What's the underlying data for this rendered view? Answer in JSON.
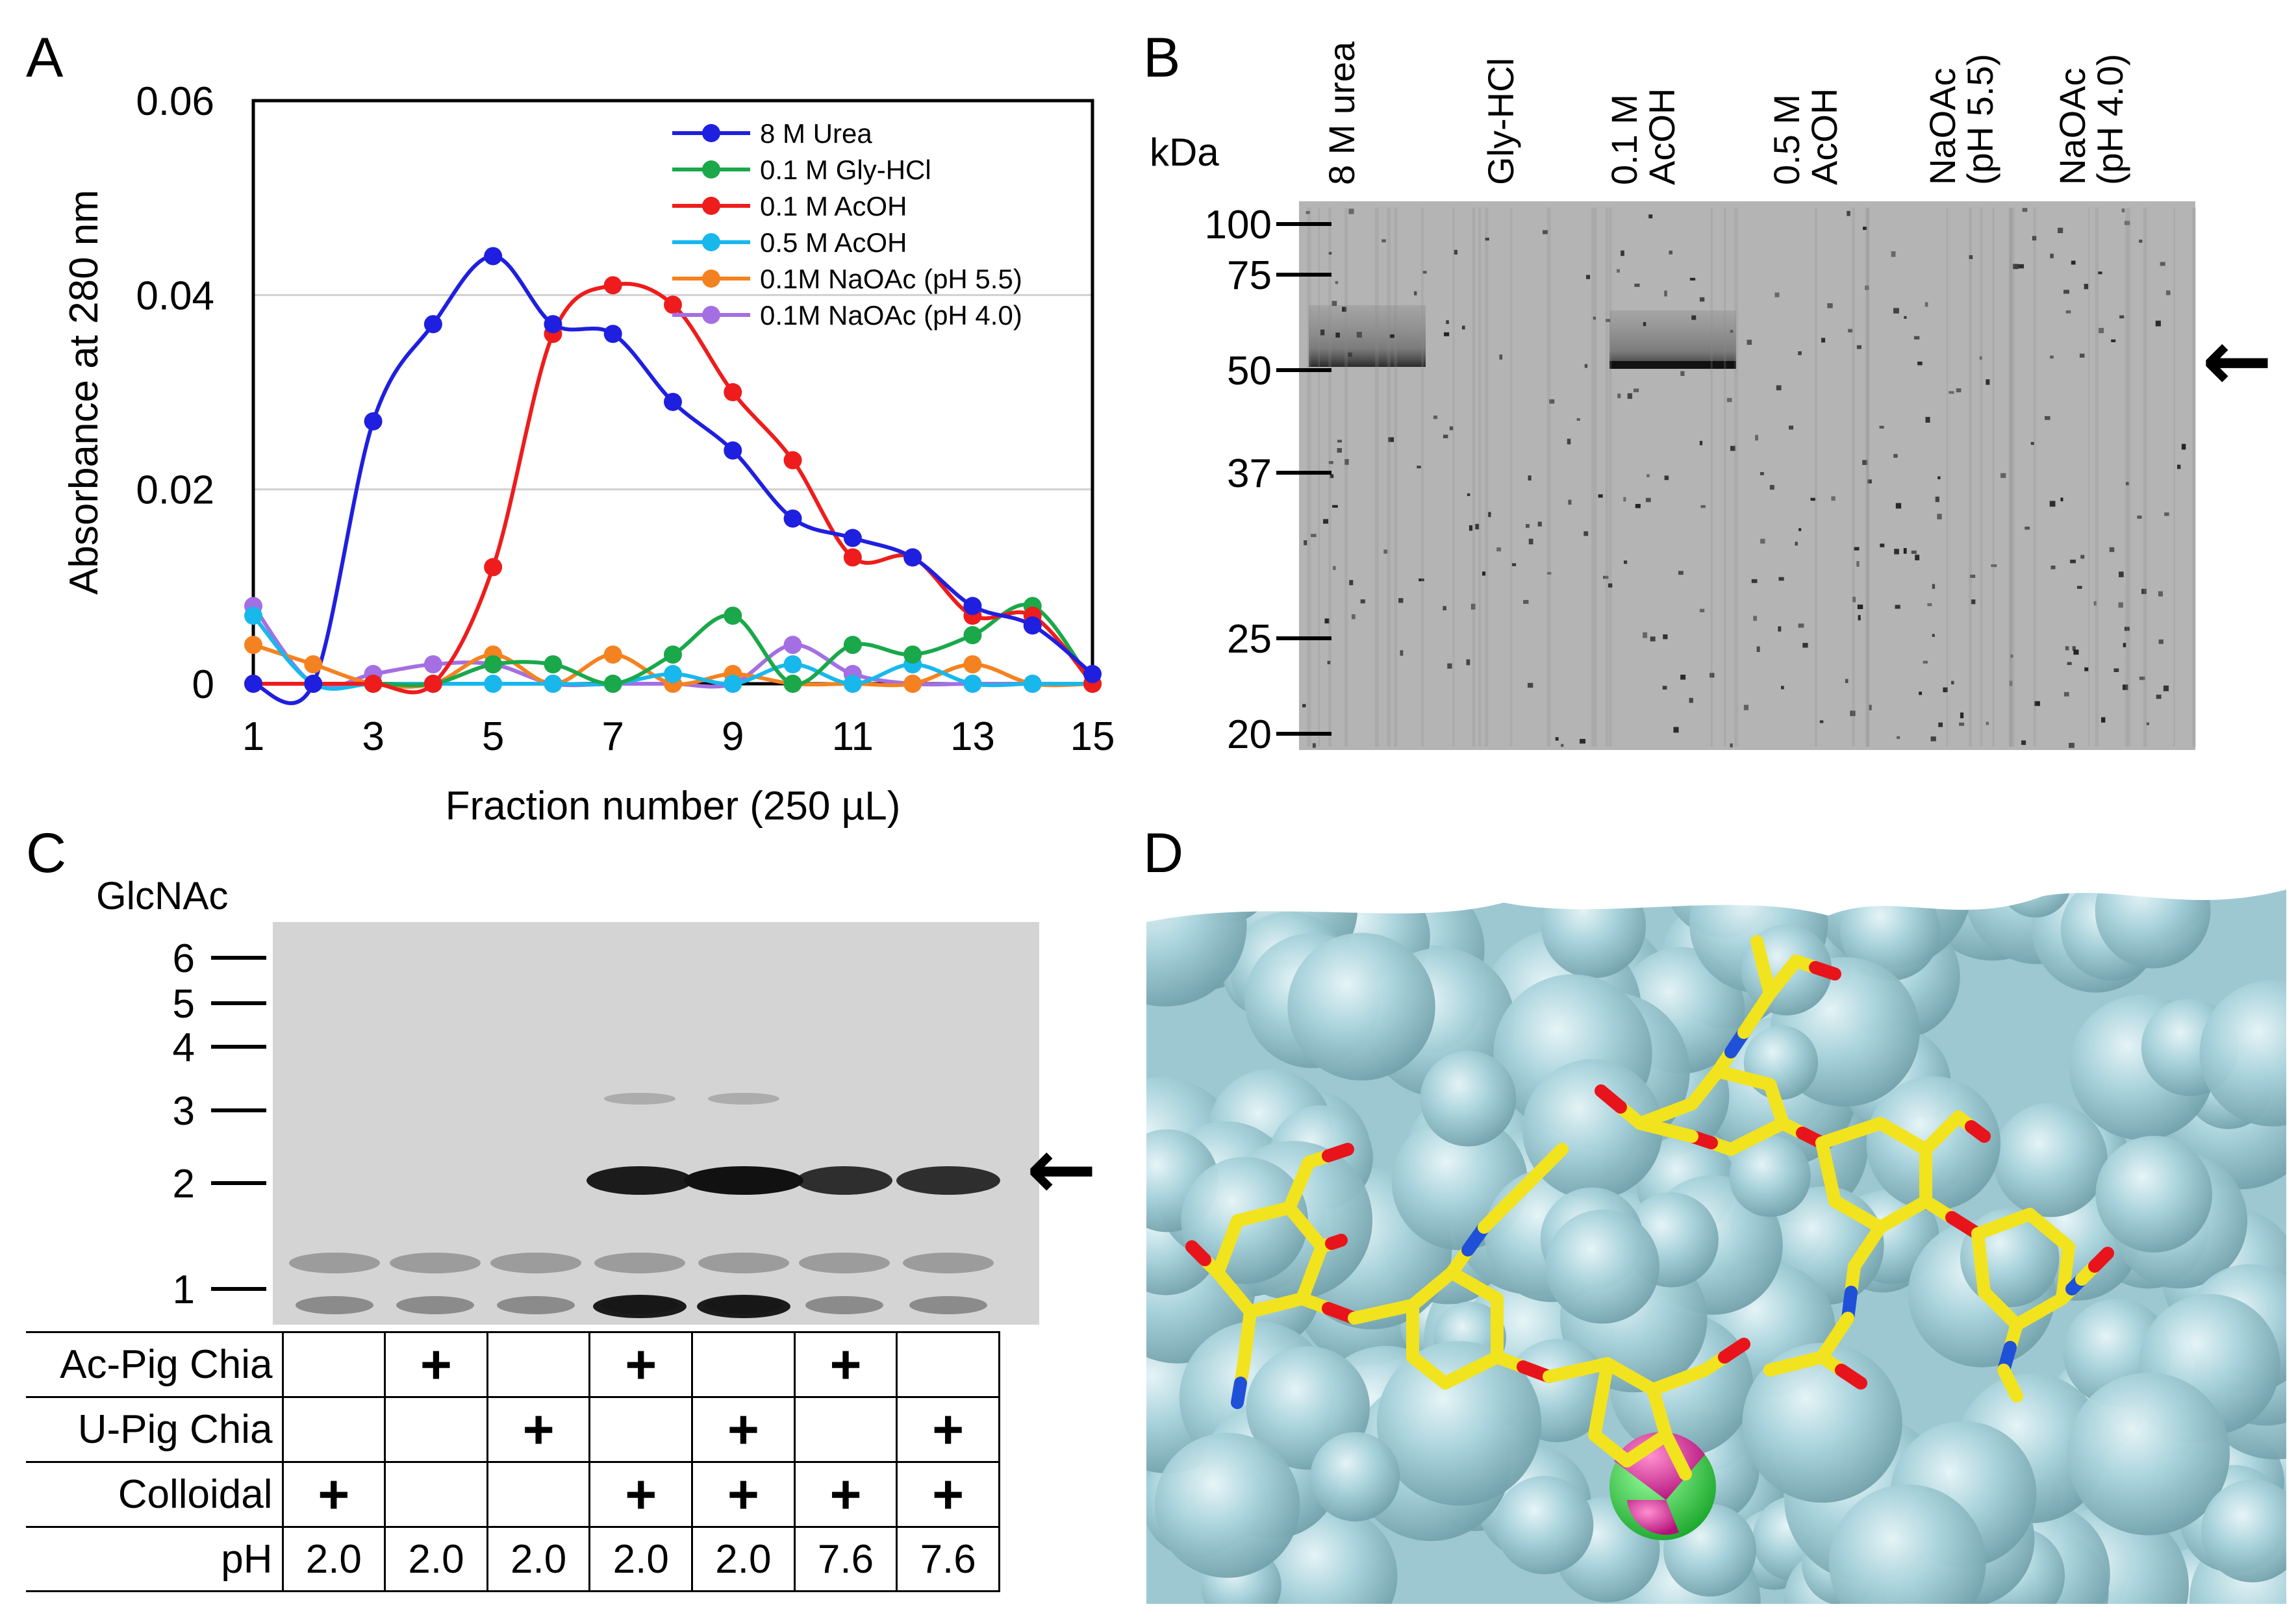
{
  "panels": {
    "a": "A",
    "b": "B",
    "c": "C",
    "d": "D"
  },
  "panel_a": {
    "chart_data": {
      "type": "line",
      "xlabel": "Fraction number (250 µL)",
      "ylabel": "Absorbance at 280 nm",
      "x": [
        1,
        2,
        3,
        4,
        5,
        6,
        7,
        8,
        9,
        10,
        11,
        12,
        13,
        14,
        15
      ],
      "xlim": [
        1,
        15
      ],
      "ylim": [
        0,
        0.06
      ],
      "xticks": [
        "1",
        "3",
        "5",
        "7",
        "9",
        "11",
        "13",
        "15"
      ],
      "yticks": [
        "0",
        "0.02",
        "0.04",
        "0.06"
      ],
      "grid": "horizontal",
      "legend_position": "top-right",
      "series": [
        {
          "name": "8 M Urea",
          "color": "#1f1fe0",
          "values": [
            0,
            0,
            0.027,
            0.037,
            0.044,
            0.037,
            0.036,
            0.029,
            0.024,
            0.017,
            0.015,
            0.013,
            0.008,
            0.006,
            0.001
          ]
        },
        {
          "name": "0.1 M Gly-HCl",
          "color": "#1aa84a",
          "values": [
            0,
            0,
            0,
            0,
            0.002,
            0.002,
            0,
            0.003,
            0.007,
            0,
            0.004,
            0.003,
            0.005,
            0.008,
            0
          ]
        },
        {
          "name": "0.1 M AcOH",
          "color": "#ee1c1c",
          "values": [
            0,
            0,
            0,
            0,
            0.012,
            0.036,
            0.041,
            0.039,
            0.03,
            0.023,
            0.013,
            0.013,
            0.007,
            0.007,
            0
          ]
        },
        {
          "name": "0.5 M AcOH",
          "color": "#18b8ec",
          "values": [
            0.007,
            0,
            0,
            0,
            0,
            0,
            0,
            0.001,
            0,
            0.002,
            0,
            0.002,
            0,
            0,
            0
          ]
        },
        {
          "name": "0.1M NaOAc (pH 5.5)",
          "color": "#f58220",
          "values": [
            0.004,
            0.002,
            0,
            0,
            0.003,
            0,
            0.003,
            0,
            0.001,
            0,
            0,
            0,
            0.002,
            0,
            0
          ]
        },
        {
          "name": "0.1M NaOAc (pH 4.0)",
          "color": "#a46fe3",
          "values": [
            0.008,
            0,
            0.001,
            0.002,
            0.002,
            0,
            0,
            0,
            0,
            0.004,
            0.001,
            0,
            0,
            0,
            0
          ]
        }
      ]
    }
  },
  "panel_b": {
    "unit_label": "kDa",
    "lanes": [
      "8 M urea",
      "Gly-HCl",
      "0.1 M\nAcOH",
      "0.5 M\nAcOH",
      "NaOAc\n(pH 5.5)",
      "NaOAc\n(pH 4.0)"
    ],
    "markers": [
      "100",
      "75",
      "50",
      "37",
      "25",
      "20"
    ],
    "arrow": "←"
  },
  "panel_c": {
    "unit_label": "GlcNAc",
    "markers": [
      "6",
      "5",
      "4",
      "3",
      "2",
      "1"
    ],
    "arrow": "←",
    "table": {
      "rows": [
        {
          "label": "Ac-Pig Chia",
          "cells": [
            "",
            "+",
            "",
            "+",
            "",
            "+",
            ""
          ]
        },
        {
          "label": "U-Pig Chia",
          "cells": [
            "",
            "",
            "+",
            "",
            "+",
            "",
            "+"
          ]
        },
        {
          "label": "Colloidal",
          "cells": [
            "+",
            "",
            "",
            "+",
            "+",
            "+",
            "+"
          ]
        },
        {
          "label": "pH",
          "cells": [
            "2.0",
            "2.0",
            "2.0",
            "2.0",
            "2.0",
            "7.6",
            "7.6"
          ]
        }
      ]
    }
  },
  "colors": {
    "protein_surface": "#a9d3dc",
    "ligand_carbon": "#f2e31f",
    "ligand_oxygen": "#e8141c",
    "ligand_nitrogen": "#1e50d8",
    "catalytic_magenta": "#e0239a",
    "catalytic_green": "#22d43c"
  }
}
